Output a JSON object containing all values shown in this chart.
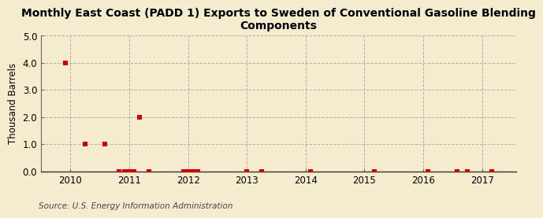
{
  "title": "Monthly East Coast (PADD 1) Exports to Sweden of Conventional Gasoline Blending\nComponents",
  "ylabel": "Thousand Barrels",
  "source": "Source: U.S. Energy Information Administration",
  "background_color": "#f5ebcf",
  "plot_background_color": "#f5ebcf",
  "xlim": [
    2009.5,
    2017.58
  ],
  "ylim": [
    0.0,
    5.0
  ],
  "yticks": [
    0.0,
    1.0,
    2.0,
    3.0,
    4.0,
    5.0
  ],
  "xticks": [
    2010,
    2011,
    2012,
    2013,
    2014,
    2015,
    2016,
    2017
  ],
  "data_x": [
    2009.92,
    2010.25,
    2010.58,
    2010.83,
    2010.92,
    2011.0,
    2011.08,
    2011.17,
    2011.33,
    2011.92,
    2012.0,
    2012.08,
    2012.17,
    2013.0,
    2013.25,
    2014.08,
    2015.17,
    2016.08,
    2016.58,
    2016.75,
    2017.17
  ],
  "data_y": [
    4.0,
    1.0,
    1.0,
    0.0,
    0.0,
    0.0,
    0.0,
    2.0,
    0.0,
    0.0,
    0.0,
    0.0,
    0.0,
    0.0,
    0.0,
    0.0,
    0.0,
    0.0,
    0.0,
    0.0,
    0.0
  ],
  "marker_color": "#cc0000",
  "marker_size": 4,
  "grid_color": "#b0b0b0",
  "title_fontsize": 10,
  "axis_fontsize": 8.5,
  "tick_fontsize": 8.5,
  "source_fontsize": 7.5
}
